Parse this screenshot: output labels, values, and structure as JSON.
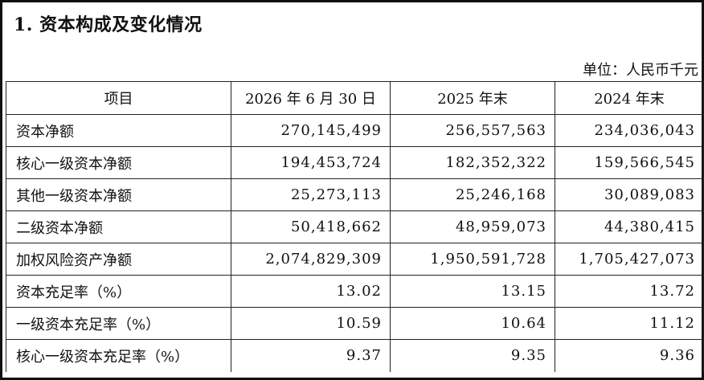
{
  "section_title": "1. 资本构成及变化情况",
  "unit_label": "单位：人民币千元",
  "table": {
    "headers": [
      "项目",
      "2026 年 6 月 30 日",
      "2025 年末",
      "2024 年末"
    ],
    "rows": [
      [
        "资本净额",
        "270,145,499",
        "256,557,563",
        "234,036,043"
      ],
      [
        "核心一级资本净额",
        "194,453,724",
        "182,352,322",
        "159,566,545"
      ],
      [
        "其他一级资本净额",
        "25,273,113",
        "25,246,168",
        "30,089,083"
      ],
      [
        "二级资本净额",
        "50,418,662",
        "48,959,073",
        "44,380,415"
      ],
      [
        "加权风险资产净额",
        "2,074,829,309",
        "1,950,591,728",
        "1,705,427,073"
      ],
      [
        "资本充足率（%）",
        "13.02",
        "13.15",
        "13.72"
      ],
      [
        "一级资本充足率（%）",
        "10.59",
        "10.64",
        "11.12"
      ],
      [
        "核心一级资本充足率（%）",
        "9.37",
        "9.35",
        "9.36"
      ]
    ]
  }
}
